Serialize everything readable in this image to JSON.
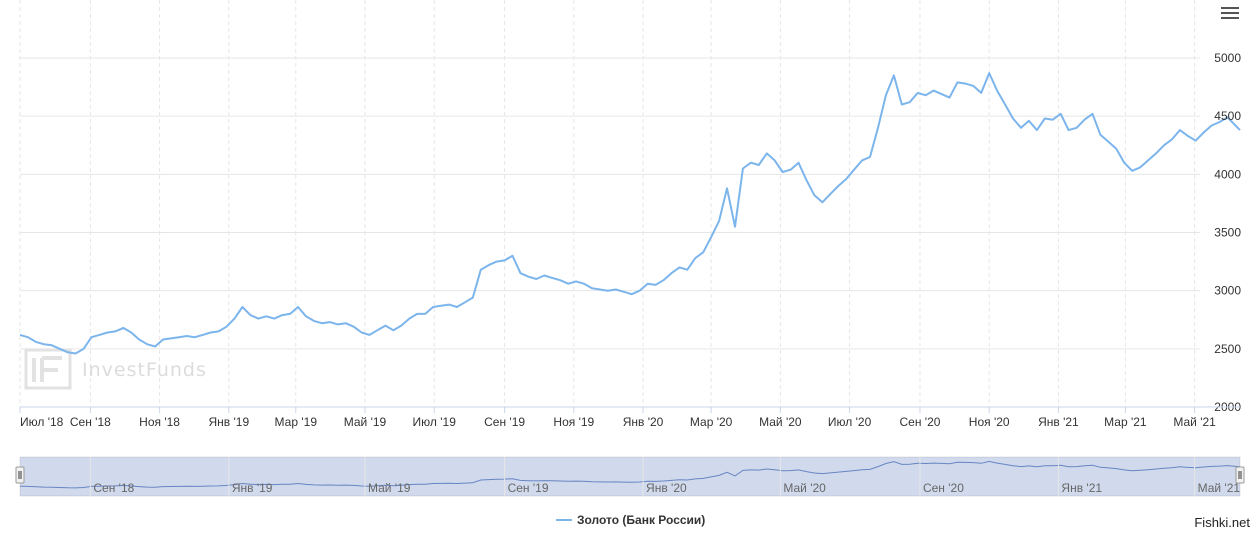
{
  "chart_data": {
    "type": "line",
    "title": "",
    "xlabel": "",
    "ylabel": "",
    "ylim": [
      2000,
      5000
    ],
    "yticks": [
      2000,
      2500,
      3000,
      3500,
      4000,
      4500,
      5000
    ],
    "grid": true,
    "legend_position": "bottom-center",
    "xrange": [
      "2018-07-01",
      "2021-06-10"
    ],
    "xticks": [
      {
        "date": "2018-07-01",
        "label": "Июл '18"
      },
      {
        "date": "2018-09-01",
        "label": "Сен '18"
      },
      {
        "date": "2018-11-01",
        "label": "Ноя '18"
      },
      {
        "date": "2019-01-01",
        "label": "Янв '19"
      },
      {
        "date": "2019-03-01",
        "label": "Мар '19"
      },
      {
        "date": "2019-05-01",
        "label": "Май '19"
      },
      {
        "date": "2019-07-01",
        "label": "Июл '19"
      },
      {
        "date": "2019-09-01",
        "label": "Сен '19"
      },
      {
        "date": "2019-11-01",
        "label": "Ноя '19"
      },
      {
        "date": "2020-01-01",
        "label": "Янв '20"
      },
      {
        "date": "2020-03-01",
        "label": "Мар '20"
      },
      {
        "date": "2020-05-01",
        "label": "Май '20"
      },
      {
        "date": "2020-07-01",
        "label": "Июл '20"
      },
      {
        "date": "2020-09-01",
        "label": "Сен '20"
      },
      {
        "date": "2020-11-01",
        "label": "Ноя '20"
      },
      {
        "date": "2021-01-01",
        "label": "Янв '21"
      },
      {
        "date": "2021-03-01",
        "label": "Мар '21"
      },
      {
        "date": "2021-05-01",
        "label": "Май '21"
      }
    ],
    "navigator_ticks": [
      {
        "date": "2018-09-01",
        "label": "Сен '18"
      },
      {
        "date": "2019-01-01",
        "label": "Янв '19"
      },
      {
        "date": "2019-05-01",
        "label": "Май '19"
      },
      {
        "date": "2019-09-01",
        "label": "Сен '19"
      },
      {
        "date": "2020-01-01",
        "label": "Янв '20"
      },
      {
        "date": "2020-05-01",
        "label": "Май '20"
      },
      {
        "date": "2020-09-01",
        "label": "Сен '20"
      },
      {
        "date": "2021-01-01",
        "label": "Янв '21"
      },
      {
        "date": "2021-05-01",
        "label": "Май '21"
      }
    ],
    "series": [
      {
        "name": "Золото (Банк России)",
        "color": "#7cb5ec",
        "points": [
          [
            "2018-07-01",
            2620
          ],
          [
            "2018-07-08",
            2600
          ],
          [
            "2018-07-15",
            2560
          ],
          [
            "2018-07-22",
            2540
          ],
          [
            "2018-07-29",
            2530
          ],
          [
            "2018-08-05",
            2500
          ],
          [
            "2018-08-12",
            2470
          ],
          [
            "2018-08-19",
            2460
          ],
          [
            "2018-08-26",
            2500
          ],
          [
            "2018-09-02",
            2600
          ],
          [
            "2018-09-09",
            2620
          ],
          [
            "2018-09-16",
            2640
          ],
          [
            "2018-09-23",
            2650
          ],
          [
            "2018-09-30",
            2680
          ],
          [
            "2018-10-07",
            2640
          ],
          [
            "2018-10-14",
            2580
          ],
          [
            "2018-10-21",
            2540
          ],
          [
            "2018-10-28",
            2520
          ],
          [
            "2018-11-04",
            2580
          ],
          [
            "2018-11-11",
            2590
          ],
          [
            "2018-11-18",
            2600
          ],
          [
            "2018-11-25",
            2610
          ],
          [
            "2018-12-02",
            2600
          ],
          [
            "2018-12-09",
            2620
          ],
          [
            "2018-12-16",
            2640
          ],
          [
            "2018-12-23",
            2650
          ],
          [
            "2018-12-30",
            2690
          ],
          [
            "2019-01-06",
            2760
          ],
          [
            "2019-01-13",
            2860
          ],
          [
            "2019-01-20",
            2790
          ],
          [
            "2019-01-27",
            2760
          ],
          [
            "2019-02-03",
            2780
          ],
          [
            "2019-02-10",
            2760
          ],
          [
            "2019-02-17",
            2790
          ],
          [
            "2019-02-24",
            2800
          ],
          [
            "2019-03-03",
            2860
          ],
          [
            "2019-03-10",
            2780
          ],
          [
            "2019-03-17",
            2740
          ],
          [
            "2019-03-24",
            2720
          ],
          [
            "2019-03-31",
            2730
          ],
          [
            "2019-04-07",
            2710
          ],
          [
            "2019-04-14",
            2720
          ],
          [
            "2019-04-21",
            2690
          ],
          [
            "2019-04-28",
            2640
          ],
          [
            "2019-05-05",
            2620
          ],
          [
            "2019-05-12",
            2660
          ],
          [
            "2019-05-19",
            2700
          ],
          [
            "2019-05-26",
            2660
          ],
          [
            "2019-06-02",
            2700
          ],
          [
            "2019-06-09",
            2760
          ],
          [
            "2019-06-16",
            2800
          ],
          [
            "2019-06-23",
            2800
          ],
          [
            "2019-06-30",
            2860
          ],
          [
            "2019-07-07",
            2870
          ],
          [
            "2019-07-14",
            2880
          ],
          [
            "2019-07-21",
            2860
          ],
          [
            "2019-07-28",
            2900
          ],
          [
            "2019-08-04",
            2940
          ],
          [
            "2019-08-11",
            3180
          ],
          [
            "2019-08-18",
            3220
          ],
          [
            "2019-08-25",
            3250
          ],
          [
            "2019-09-01",
            3260
          ],
          [
            "2019-09-08",
            3300
          ],
          [
            "2019-09-15",
            3150
          ],
          [
            "2019-09-22",
            3120
          ],
          [
            "2019-09-29",
            3100
          ],
          [
            "2019-10-06",
            3130
          ],
          [
            "2019-10-13",
            3110
          ],
          [
            "2019-10-20",
            3090
          ],
          [
            "2019-10-27",
            3060
          ],
          [
            "2019-11-03",
            3080
          ],
          [
            "2019-11-10",
            3060
          ],
          [
            "2019-11-17",
            3020
          ],
          [
            "2019-11-24",
            3010
          ],
          [
            "2019-12-01",
            3000
          ],
          [
            "2019-12-08",
            3010
          ],
          [
            "2019-12-15",
            2990
          ],
          [
            "2019-12-22",
            2970
          ],
          [
            "2019-12-29",
            3000
          ],
          [
            "2020-01-05",
            3060
          ],
          [
            "2020-01-12",
            3050
          ],
          [
            "2020-01-19",
            3090
          ],
          [
            "2020-01-26",
            3150
          ],
          [
            "2020-02-02",
            3200
          ],
          [
            "2020-02-09",
            3180
          ],
          [
            "2020-02-16",
            3280
          ],
          [
            "2020-02-23",
            3330
          ],
          [
            "2020-03-01",
            3460
          ],
          [
            "2020-03-08",
            3600
          ],
          [
            "2020-03-15",
            3880
          ],
          [
            "2020-03-22",
            3550
          ],
          [
            "2020-03-29",
            4050
          ],
          [
            "2020-04-05",
            4100
          ],
          [
            "2020-04-12",
            4080
          ],
          [
            "2020-04-19",
            4180
          ],
          [
            "2020-04-26",
            4120
          ],
          [
            "2020-05-03",
            4020
          ],
          [
            "2020-05-10",
            4040
          ],
          [
            "2020-05-17",
            4100
          ],
          [
            "2020-05-24",
            3950
          ],
          [
            "2020-05-31",
            3820
          ],
          [
            "2020-06-07",
            3760
          ],
          [
            "2020-06-14",
            3830
          ],
          [
            "2020-06-21",
            3900
          ],
          [
            "2020-06-28",
            3960
          ],
          [
            "2020-07-05",
            4040
          ],
          [
            "2020-07-12",
            4120
          ],
          [
            "2020-07-19",
            4150
          ],
          [
            "2020-07-26",
            4400
          ],
          [
            "2020-08-02",
            4680
          ],
          [
            "2020-08-09",
            4850
          ],
          [
            "2020-08-16",
            4600
          ],
          [
            "2020-08-23",
            4620
          ],
          [
            "2020-08-30",
            4700
          ],
          [
            "2020-09-06",
            4680
          ],
          [
            "2020-09-13",
            4720
          ],
          [
            "2020-09-20",
            4690
          ],
          [
            "2020-09-27",
            4660
          ],
          [
            "2020-10-04",
            4790
          ],
          [
            "2020-10-11",
            4780
          ],
          [
            "2020-10-18",
            4760
          ],
          [
            "2020-10-25",
            4700
          ],
          [
            "2020-11-01",
            4870
          ],
          [
            "2020-11-08",
            4720
          ],
          [
            "2020-11-15",
            4600
          ],
          [
            "2020-11-22",
            4480
          ],
          [
            "2020-11-29",
            4400
          ],
          [
            "2020-12-06",
            4460
          ],
          [
            "2020-12-13",
            4380
          ],
          [
            "2020-12-20",
            4480
          ],
          [
            "2020-12-27",
            4470
          ],
          [
            "2021-01-03",
            4520
          ],
          [
            "2021-01-10",
            4380
          ],
          [
            "2021-01-17",
            4400
          ],
          [
            "2021-01-24",
            4470
          ],
          [
            "2021-01-31",
            4520
          ],
          [
            "2021-02-07",
            4340
          ],
          [
            "2021-02-14",
            4280
          ],
          [
            "2021-02-21",
            4220
          ],
          [
            "2021-02-28",
            4100
          ],
          [
            "2021-03-07",
            4030
          ],
          [
            "2021-03-14",
            4060
          ],
          [
            "2021-03-21",
            4120
          ],
          [
            "2021-03-28",
            4180
          ],
          [
            "2021-04-04",
            4250
          ],
          [
            "2021-04-11",
            4300
          ],
          [
            "2021-04-18",
            4380
          ],
          [
            "2021-04-25",
            4330
          ],
          [
            "2021-05-02",
            4290
          ],
          [
            "2021-05-09",
            4360
          ],
          [
            "2021-05-16",
            4420
          ],
          [
            "2021-05-23",
            4450
          ],
          [
            "2021-05-30",
            4490
          ],
          [
            "2021-06-06",
            4420
          ],
          [
            "2021-06-10",
            4380
          ]
        ]
      }
    ]
  },
  "legend": {
    "label": "Золото (Банк России)"
  },
  "watermark": {
    "text": "InvestFunds"
  },
  "brand": {
    "text": "Fishki.net"
  },
  "menu": {
    "icon": "hamburger-menu-icon"
  }
}
